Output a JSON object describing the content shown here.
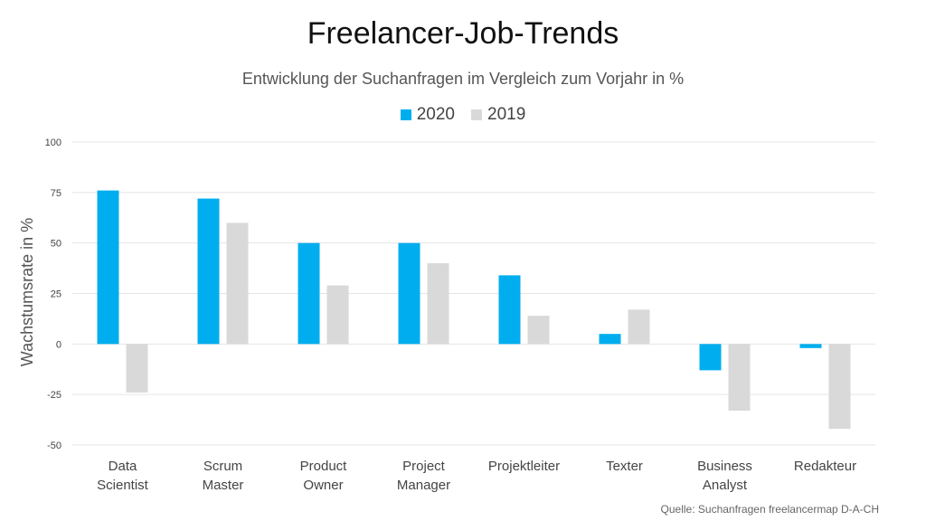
{
  "header": {
    "title": "Freelancer-Job-Trends",
    "subtitle": "Entwicklung der Suchanfragen im Vergleich zum Vorjahr in %"
  },
  "source": "Quelle: Suchanfragen freelancermap D-A-CH",
  "colors": {
    "series_2020": "#00aeef",
    "series_2019": "#d9d9d9",
    "grid": "#e5e5e5",
    "axis_text": "#444444"
  },
  "chart_data": {
    "type": "bar",
    "title": "Freelancer-Job-Trends",
    "subtitle": "Entwicklung der Suchanfragen im Vergleich zum Vorjahr in %",
    "xlabel": "",
    "ylabel": "Wachstumsrate in %",
    "ylim": [
      -50,
      100
    ],
    "yticks": [
      100,
      75,
      50,
      25,
      0,
      -25,
      -50
    ],
    "grid": true,
    "legend_position": "top-center",
    "categories": [
      [
        "Data",
        "Scientist"
      ],
      [
        "Scrum",
        "Master"
      ],
      [
        "Product",
        "Owner"
      ],
      [
        "Project",
        "Manager"
      ],
      [
        "Projektleiter"
      ],
      [
        "Texter"
      ],
      [
        "Business",
        "Analyst"
      ],
      [
        "Redakteur"
      ]
    ],
    "series": [
      {
        "name": "2020",
        "color": "#00aeef",
        "values": [
          76,
          72,
          50,
          50,
          34,
          5,
          -13,
          -2
        ]
      },
      {
        "name": "2019",
        "color": "#d9d9d9",
        "values": [
          -24,
          60,
          29,
          40,
          14,
          17,
          -33,
          -42
        ]
      }
    ]
  }
}
